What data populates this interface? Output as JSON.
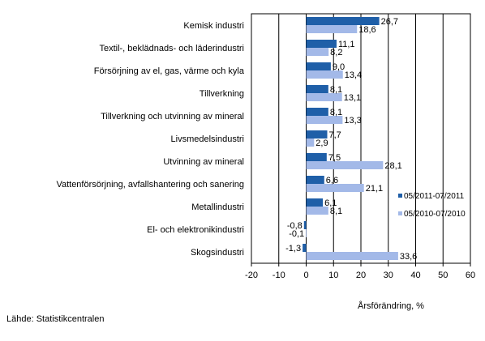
{
  "chart_data": {
    "type": "bar",
    "orientation": "horizontal",
    "categories": [
      "Kemisk industri",
      "Textil-, beklädnads- och läderindustri",
      "Försörjning av el, gas, värme och kyla",
      "Tillverkning",
      "Tillverkning och utvinning av mineral",
      "Livsmedelsindustri",
      "Utvinning av mineral",
      "Vattenförsörjning, avfallshantering och sanering",
      "Metallindustri",
      "El- och elektronikindustri",
      "Skogsindustri"
    ],
    "series": [
      {
        "name": "05/2011-07/2011",
        "color": "#1f5fa8",
        "values": [
          26.7,
          11.1,
          9.0,
          8.1,
          8.1,
          7.7,
          7.5,
          6.6,
          6.1,
          -0.8,
          -1.3
        ],
        "labels": [
          "26,7",
          "11,1",
          "9,0",
          "8,1",
          "8,1",
          "7,7",
          "7,5",
          "6,6",
          "6,1",
          "-0,8",
          "-1,3"
        ]
      },
      {
        "name": "05/2010-07/2010",
        "color": "#a3b9e8",
        "values": [
          18.6,
          8.2,
          13.4,
          13.1,
          13.3,
          2.9,
          28.1,
          21.1,
          8.1,
          -0.1,
          33.6
        ],
        "labels": [
          "18,6",
          "8,2",
          "13,4",
          "13,1",
          "13,3",
          "2,9",
          "28,1",
          "21,1",
          "8,1",
          "-0,1",
          "33,6"
        ]
      }
    ],
    "xlabel": "Årsförändring, %",
    "xlim": [
      -20,
      60
    ],
    "xticks": [
      -20,
      -10,
      0,
      10,
      20,
      30,
      40,
      50,
      60
    ],
    "xtick_labels": [
      "-20",
      "-10",
      "0",
      "10",
      "20",
      "30",
      "40",
      "50",
      "60"
    ],
    "grid": "vertical",
    "legend_position": "right"
  },
  "source": "Lähde: Statistikcentralen"
}
